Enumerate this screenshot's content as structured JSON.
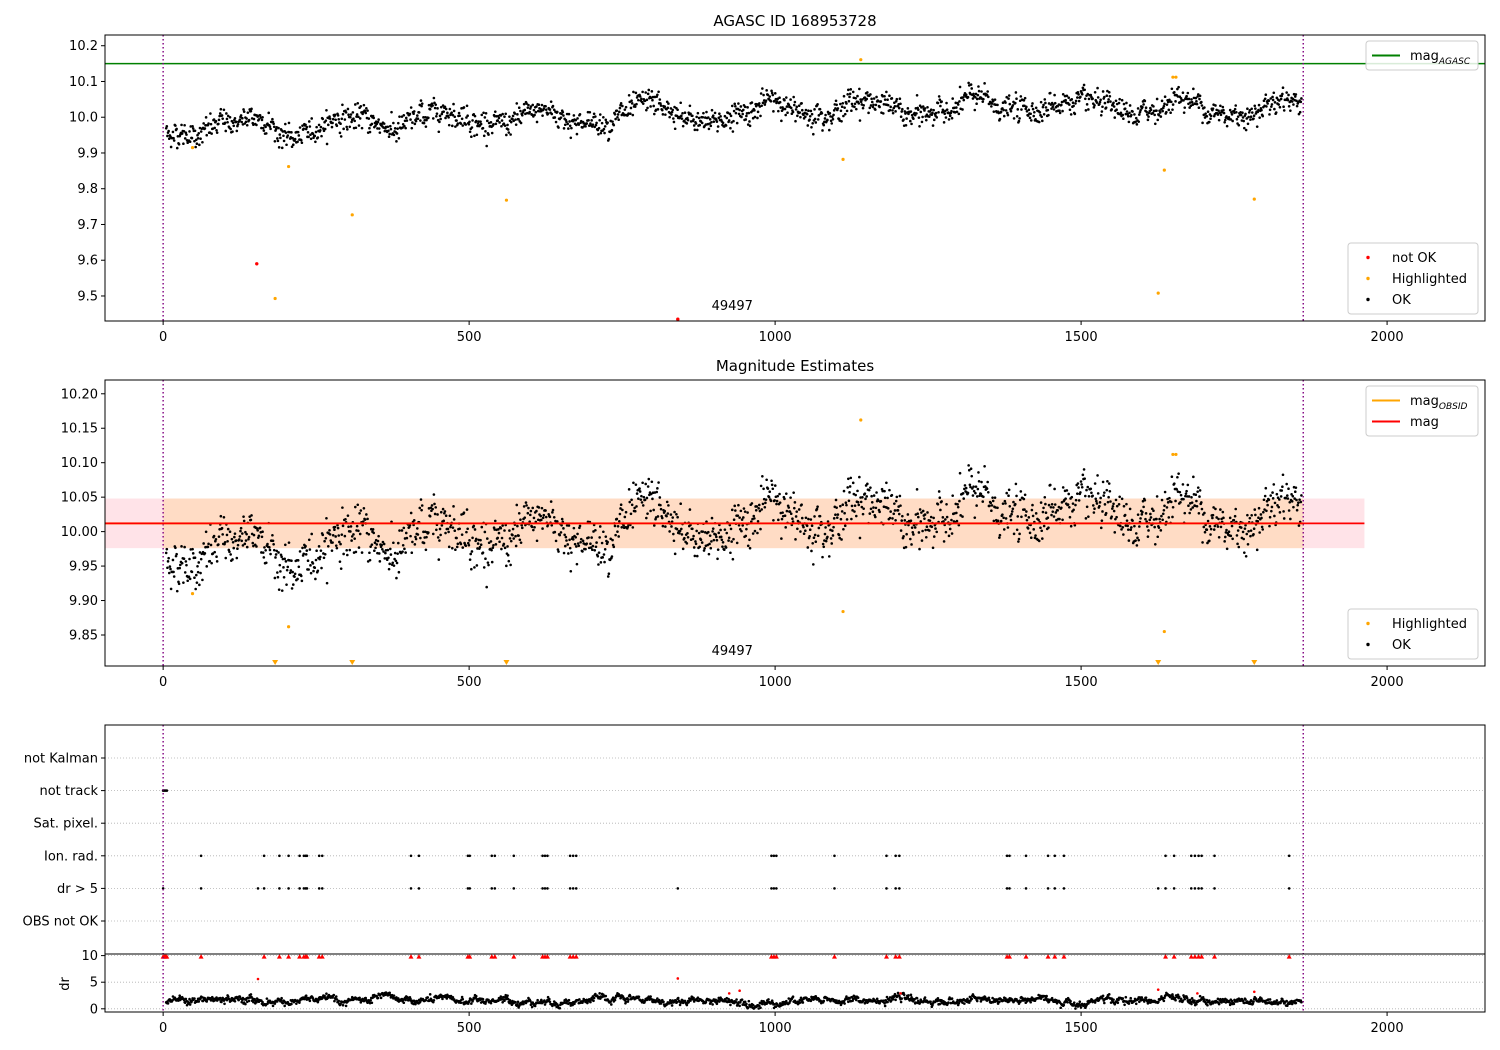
{
  "chart_data": [
    {
      "type": "scatter",
      "title": "AGASC ID 168953728",
      "xlabel": "",
      "ylabel": "",
      "xlim": [
        -95,
        2160
      ],
      "ylim": [
        9.43,
        10.23
      ],
      "xticks": [
        0,
        500,
        1000,
        1500,
        2000
      ],
      "yticks": [
        9.5,
        9.6,
        9.7,
        9.8,
        9.9,
        10.0,
        10.1,
        10.2
      ],
      "xtick_labels": [
        "0",
        "500",
        "1000",
        "1500",
        "2000"
      ],
      "ytick_labels": [
        "9.5",
        "9.6",
        "9.7",
        "9.8",
        "9.9",
        "10.0",
        "10.1",
        "10.2"
      ],
      "vlines": [
        0,
        1863
      ],
      "hlines": [
        {
          "name": "mag_AGASC",
          "y": 10.15,
          "color": "#008000"
        }
      ],
      "annotations": [
        {
          "text": "49497",
          "x": 930,
          "y": 9.45
        }
      ],
      "ok_series": {
        "name": "OK",
        "color": "#000000",
        "x_start": 5,
        "x_end": 1860,
        "count": 1850,
        "trend": [
          [
            5,
            9.955
          ],
          [
            60,
            9.955
          ],
          [
            100,
            9.985
          ],
          [
            170,
            9.995
          ],
          [
            200,
            9.94
          ],
          [
            230,
            9.945
          ],
          [
            280,
            10.0
          ],
          [
            330,
            9.995
          ],
          [
            380,
            9.965
          ],
          [
            420,
            10.0
          ],
          [
            460,
            10.025
          ],
          [
            520,
            9.985
          ],
          [
            560,
            9.975
          ],
          [
            620,
            10.025
          ],
          [
            680,
            9.985
          ],
          [
            720,
            9.985
          ],
          [
            770,
            10.02
          ],
          [
            800,
            10.04
          ],
          [
            850,
            9.99
          ],
          [
            900,
            9.99
          ],
          [
            960,
            10.02
          ],
          [
            1000,
            10.05
          ],
          [
            1040,
            10.01
          ],
          [
            1100,
            10.02
          ],
          [
            1140,
            10.055
          ],
          [
            1180,
            10.035
          ],
          [
            1220,
            10.0
          ],
          [
            1280,
            10.02
          ],
          [
            1320,
            10.06
          ],
          [
            1370,
            10.025
          ],
          [
            1420,
            10.02
          ],
          [
            1480,
            10.045
          ],
          [
            1530,
            10.03
          ],
          [
            1580,
            10.0
          ],
          [
            1620,
            10.02
          ],
          [
            1660,
            10.06
          ],
          [
            1700,
            10.03
          ],
          [
            1740,
            10.0
          ],
          [
            1780,
            10.015
          ],
          [
            1820,
            10.055
          ],
          [
            1860,
            10.05
          ]
        ],
        "scatter_sd": 0.016
      },
      "highlighted": {
        "name": "Highlighted",
        "color": "#ffa500",
        "x": [
          48,
          205,
          183,
          309,
          561,
          1111,
          1140,
          1626,
          1636,
          1650,
          1655,
          1783
        ],
        "y": [
          9.915,
          9.862,
          9.493,
          9.727,
          9.768,
          9.882,
          10.161,
          9.508,
          9.852,
          10.112,
          10.112,
          9.771
        ]
      },
      "not_ok": {
        "name": "not OK",
        "color": "#ff0000",
        "x": [
          153,
          841
        ],
        "y": [
          9.59,
          9.435
        ]
      },
      "legends": [
        {
          "position": "upper right",
          "entries": [
            {
              "label": "mag",
              "sub": "AGASC",
              "kind": "line",
              "color": "#008000"
            }
          ]
        },
        {
          "position": "lower right",
          "entries": [
            {
              "label": "not OK",
              "kind": "dot",
              "color": "#ff0000"
            },
            {
              "label": "Highlighted",
              "kind": "dot",
              "color": "#ffa500"
            },
            {
              "label": "OK",
              "kind": "dot",
              "color": "#000000"
            }
          ]
        }
      ]
    },
    {
      "type": "scatter",
      "title": "Magnitude Estimates",
      "xlabel": "",
      "ylabel": "",
      "xlim": [
        -95,
        2160
      ],
      "ylim": [
        9.805,
        10.22
      ],
      "xticks": [
        0,
        500,
        1000,
        1500,
        2000
      ],
      "yticks": [
        9.85,
        9.9,
        9.95,
        10.0,
        10.05,
        10.1,
        10.15,
        10.2
      ],
      "xtick_labels": [
        "0",
        "500",
        "1000",
        "1500",
        "2000"
      ],
      "ytick_labels": [
        "9.85",
        "9.90",
        "9.95",
        "10.00",
        "10.05",
        "10.10",
        "10.15",
        "10.20"
      ],
      "vlines": [
        0,
        1863
      ],
      "mag_line": {
        "name": "mag",
        "y": 10.012,
        "x_range": [
          -95,
          1963
        ],
        "color": "#ff0000"
      },
      "mag_band": {
        "y0": 9.976,
        "y1": 10.048,
        "x_range": [
          -95,
          1963
        ],
        "color": "#ffc0cb"
      },
      "obsid_line": {
        "name": "mag_OBSID",
        "y": 10.012,
        "x_range": [
          -95,
          1963
        ],
        "color": "#ffa500"
      },
      "obsid_band": {
        "y0": 9.976,
        "y1": 10.048,
        "x_range": [
          -95,
          1963
        ],
        "color": "#ffdab9"
      },
      "annotations": [
        {
          "text": "49497",
          "x": 930,
          "y": 9.815
        }
      ],
      "ok_series_ref": 0,
      "highlighted": {
        "name": "Highlighted",
        "color": "#ffa500",
        "x": [
          48,
          205,
          1111,
          1140,
          1636,
          1650,
          1655
        ],
        "y": [
          9.91,
          9.862,
          9.884,
          10.162,
          9.855,
          10.112,
          10.112
        ]
      },
      "below_markers": {
        "color": "#ffa500",
        "x": [
          183,
          309,
          561,
          1626,
          1783
        ]
      },
      "legends": [
        {
          "position": "upper right",
          "entries": [
            {
              "label": "mag",
              "sub": "OBSID",
              "kind": "line",
              "color": "#ffa500"
            },
            {
              "label": "mag",
              "kind": "line",
              "color": "#ff0000"
            }
          ]
        },
        {
          "position": "lower right",
          "entries": [
            {
              "label": "Highlighted",
              "kind": "dot",
              "color": "#ffa500"
            },
            {
              "label": "OK",
              "kind": "dot",
              "color": "#000000"
            }
          ]
        }
      ]
    },
    {
      "type": "scatter",
      "title": "",
      "xlabel": "",
      "ylabel": "",
      "xlim": [
        -95,
        2160
      ],
      "vlines": [
        0,
        1863
      ],
      "flag_rows": [
        "not Kalman",
        "not track",
        "Sat. pixel.",
        "Ion. rad.",
        "dr > 5",
        "OBS not OK"
      ],
      "flags": {
        "not track": [
          0,
          2,
          4,
          6
        ],
        "Ion. rad.": [
          62,
          165,
          190,
          205,
          223,
          230,
          233,
          235,
          255,
          260,
          405,
          418,
          498,
          501,
          537,
          542,
          573,
          620,
          624,
          628,
          665,
          670,
          675,
          994,
          998,
          1002,
          1097,
          1182,
          1197,
          1203,
          1379,
          1383,
          1410,
          1446,
          1457,
          1472,
          1638,
          1652,
          1680,
          1686,
          1692,
          1697,
          1718,
          1840
        ],
        "dr > 5": [
          0,
          62,
          155,
          165,
          190,
          205,
          223,
          230,
          233,
          235,
          255,
          260,
          405,
          418,
          498,
          501,
          537,
          542,
          573,
          620,
          624,
          628,
          665,
          670,
          675,
          841,
          994,
          998,
          1002,
          1097,
          1182,
          1197,
          1203,
          1379,
          1383,
          1410,
          1446,
          1457,
          1472,
          1626,
          1638,
          1652,
          1680,
          1686,
          1692,
          1697,
          1718,
          1840
        ]
      },
      "dr": {
        "ylabel": "dr",
        "yticks": [
          0,
          5,
          10
        ],
        "ytick_labels": [
          "0",
          "5",
          "10"
        ],
        "ylim": [
          -0.6,
          10.3
        ],
        "baseline_mean": 1.5,
        "clipped_x": [
          0,
          2,
          4,
          6,
          62,
          165,
          190,
          205,
          223,
          230,
          233,
          235,
          255,
          260,
          405,
          418,
          498,
          501,
          537,
          542,
          573,
          620,
          624,
          628,
          665,
          670,
          675,
          994,
          998,
          1002,
          1097,
          1182,
          1197,
          1203,
          1379,
          1383,
          1410,
          1446,
          1457,
          1472,
          1638,
          1652,
          1680,
          1686,
          1692,
          1697,
          1718,
          1840
        ],
        "red_points": {
          "x": [
            155,
            841,
            925,
            942,
            1205,
            1626,
            1690,
            1783
          ],
          "y": [
            5.6,
            5.7,
            2.9,
            3.4,
            2.9,
            3.6,
            2.9,
            3.2
          ]
        }
      },
      "xticks": [
        0,
        500,
        1000,
        1500,
        2000
      ],
      "xtick_labels": [
        "0",
        "500",
        "1000",
        "1500",
        "2000"
      ]
    }
  ]
}
